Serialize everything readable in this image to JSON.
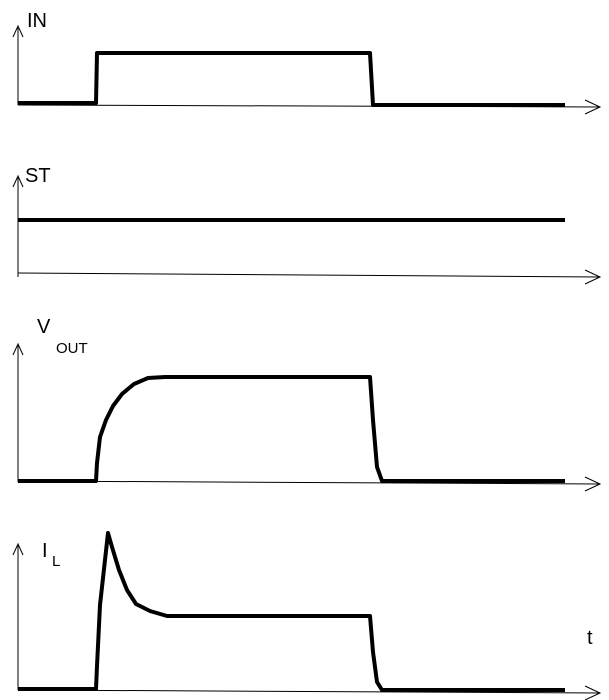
{
  "labels": {
    "in": "IN",
    "st": "ST",
    "vout_main": "V",
    "vout_sub": "OUT",
    "il_main": "I",
    "il_sub": "L",
    "time": "t"
  }
}
